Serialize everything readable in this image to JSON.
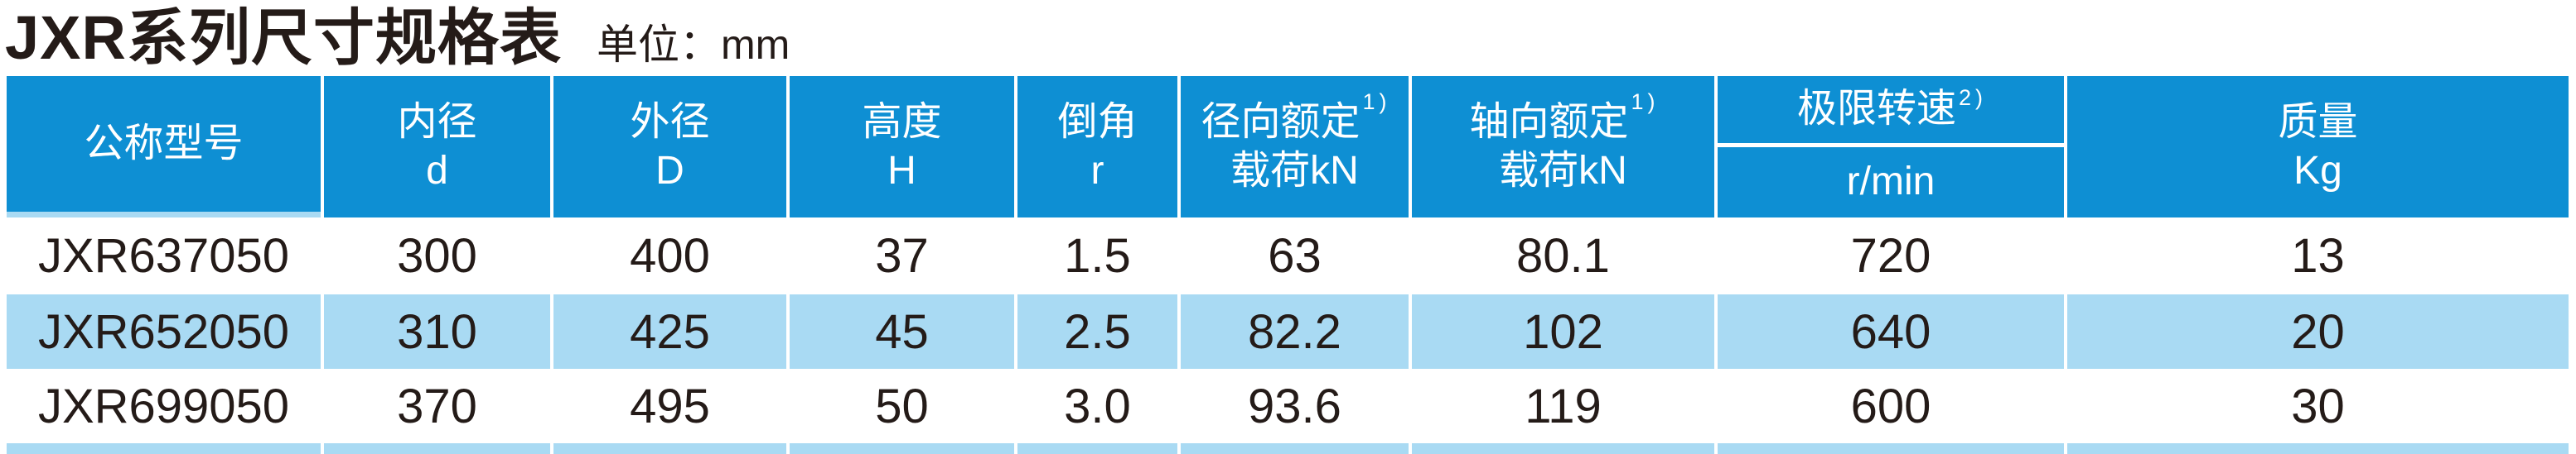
{
  "title": "JXR系列尺寸规格表",
  "unit_label": "单位：mm",
  "colors": {
    "header_blue": "#0E8FD3",
    "row_light_blue": "#A9DAF3",
    "text_dark": "#241B18"
  },
  "table": {
    "columns": [
      {
        "id": "model",
        "line1": "公称型号",
        "line2": "",
        "sup": ""
      },
      {
        "id": "bore",
        "line1": "内径",
        "line2": "d",
        "sup": ""
      },
      {
        "id": "outer",
        "line1": "外径",
        "line2": "D",
        "sup": ""
      },
      {
        "id": "height",
        "line1": "高度",
        "line2": "H",
        "sup": ""
      },
      {
        "id": "chamfer",
        "line1": "倒角",
        "line2": "r",
        "sup": ""
      },
      {
        "id": "radial",
        "line1": "径向额定",
        "line2": "载荷kN",
        "sup": "1)"
      },
      {
        "id": "axial",
        "line1": "轴向额定",
        "line2": "载荷kN",
        "sup": "1)"
      },
      {
        "id": "speed",
        "line1": "极限转速",
        "line2": "r/min",
        "sup": "2)"
      },
      {
        "id": "mass",
        "line1": "质量",
        "line2": "Kg",
        "sup": ""
      }
    ],
    "rows": [
      {
        "cells": [
          "JXR637050",
          "300",
          "400",
          "37",
          "1.5",
          "63",
          "80.1",
          "720",
          "13"
        ]
      },
      {
        "cells": [
          "JXR652050",
          "310",
          "425",
          "45",
          "2.5",
          "82.2",
          "102",
          "640",
          "20"
        ]
      },
      {
        "cells": [
          "JXR699050",
          "370",
          "495",
          "50",
          "3.0",
          "93.6",
          "119",
          "600",
          "30"
        ]
      }
    ]
  }
}
